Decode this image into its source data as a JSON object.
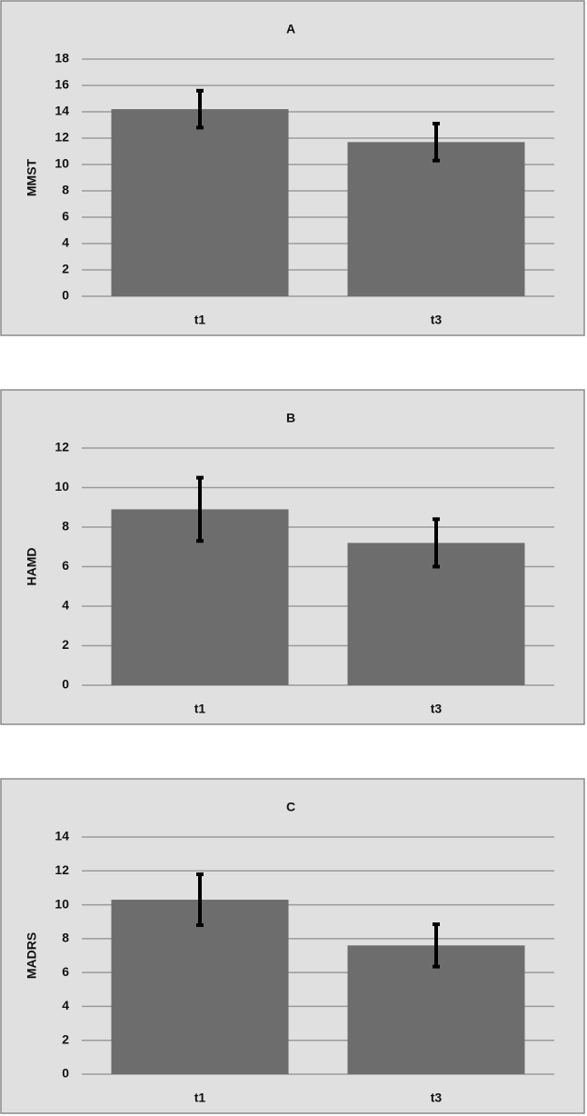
{
  "chart_data": [
    {
      "type": "bar",
      "title": "A",
      "y_label": "MMST",
      "categories": [
        "t1",
        "t3"
      ],
      "values": [
        14.2,
        11.7
      ],
      "errors": [
        1.4,
        1.4
      ],
      "color": "#6d6d6d",
      "ylim": [
        0,
        18
      ],
      "yticks": [
        0,
        2,
        4,
        6,
        8,
        10,
        12,
        14,
        16,
        18
      ],
      "grid": true
    },
    {
      "type": "bar",
      "title": "B",
      "y_label": "HAMD",
      "categories": [
        "t1",
        "t3"
      ],
      "values": [
        8.9,
        7.2
      ],
      "errors": [
        1.6,
        1.2
      ],
      "color": "#6d6d6d",
      "ylim": [
        0,
        12
      ],
      "yticks": [
        0,
        2,
        4,
        6,
        8,
        10,
        12
      ],
      "grid": true
    },
    {
      "type": "bar",
      "title": "C",
      "y_label": "MADRS",
      "categories": [
        "t1",
        "t3"
      ],
      "values": [
        10.3,
        7.6
      ],
      "errors": [
        1.5,
        1.25
      ],
      "color": "#6d6d6d",
      "ylim": [
        0,
        14
      ],
      "yticks": [
        0,
        2,
        4,
        6,
        8,
        10,
        12,
        14
      ],
      "grid": true
    }
  ]
}
